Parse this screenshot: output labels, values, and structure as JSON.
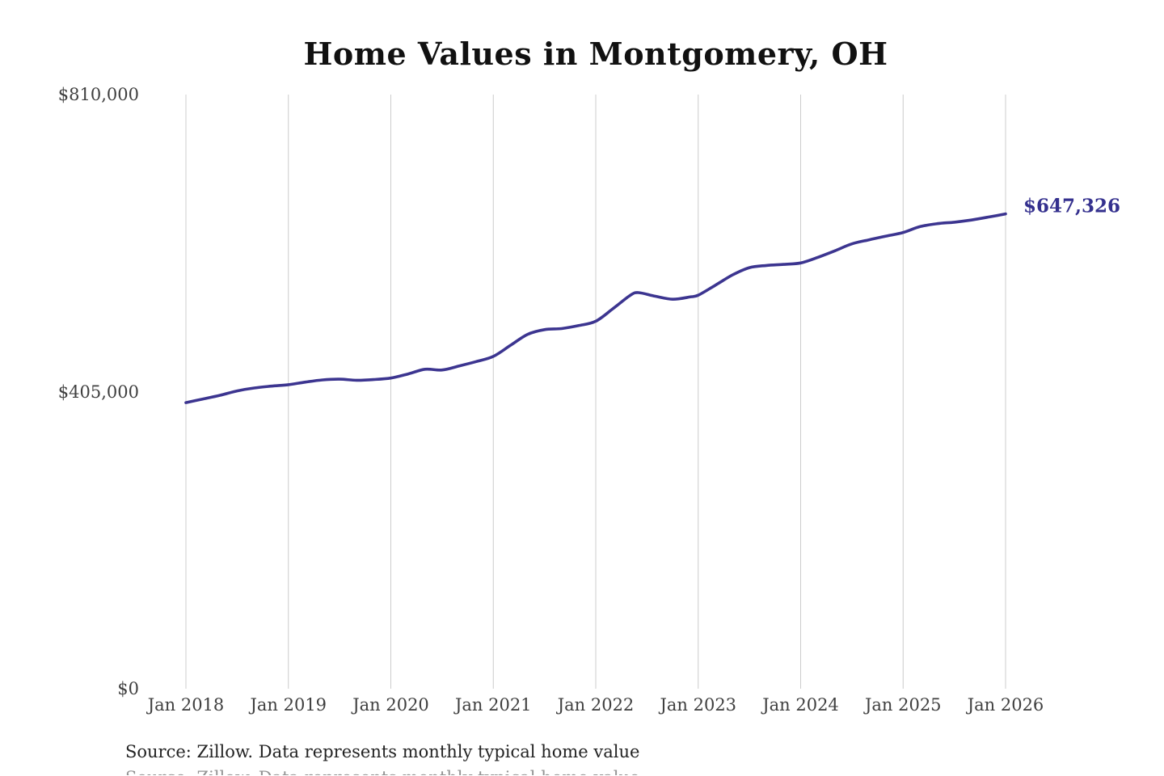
{
  "chart_data": {
    "type": "line",
    "title": "Home Values in Montgomery, OH",
    "source_note": "Source: Zillow. Data represents monthly typical home value",
    "end_label": "$647,326",
    "ylim": [
      0,
      810000
    ],
    "grid": "vertical-only",
    "legend_position": "none",
    "y_ticks": [
      {
        "label": "$810,000",
        "value": 810000
      },
      {
        "label": "$405,000",
        "value": 405000
      },
      {
        "label": "$0",
        "value": 0
      }
    ],
    "x_ticks": [
      "Jan 2018",
      "Jan 2019",
      "Jan 2020",
      "Jan 2021",
      "Jan 2022",
      "Jan 2023",
      "Jan 2024",
      "Jan 2025",
      "Jan 2026"
    ],
    "colors": {
      "line": "#3c3590",
      "end_label": "#34308e",
      "gridline": "#cccccc"
    },
    "series": [
      {
        "name": "Monthly typical home value",
        "points": [
          {
            "month": "2018-01",
            "value": 390000
          },
          {
            "month": "2018-03",
            "value": 395000
          },
          {
            "month": "2018-05",
            "value": 400000
          },
          {
            "month": "2018-07",
            "value": 406000
          },
          {
            "month": "2018-09",
            "value": 410000
          },
          {
            "month": "2018-11",
            "value": 412500
          },
          {
            "month": "2019-01",
            "value": 414500
          },
          {
            "month": "2019-03",
            "value": 418000
          },
          {
            "month": "2019-05",
            "value": 421000
          },
          {
            "month": "2019-07",
            "value": 422000
          },
          {
            "month": "2019-09",
            "value": 420500
          },
          {
            "month": "2019-11",
            "value": 421500
          },
          {
            "month": "2020-01",
            "value": 423500
          },
          {
            "month": "2020-03",
            "value": 429000
          },
          {
            "month": "2020-05",
            "value": 435500
          },
          {
            "month": "2020-07",
            "value": 434500
          },
          {
            "month": "2020-09",
            "value": 440000
          },
          {
            "month": "2020-11",
            "value": 446000
          },
          {
            "month": "2021-01",
            "value": 453000
          },
          {
            "month": "2021-03",
            "value": 468000
          },
          {
            "month": "2021-05",
            "value": 483000
          },
          {
            "month": "2021-07",
            "value": 489500
          },
          {
            "month": "2021-09",
            "value": 491000
          },
          {
            "month": "2021-11",
            "value": 495000
          },
          {
            "month": "2022-01",
            "value": 501000
          },
          {
            "month": "2022-03",
            "value": 518000
          },
          {
            "month": "2022-05",
            "value": 536000
          },
          {
            "month": "2022-06",
            "value": 540000
          },
          {
            "month": "2022-08",
            "value": 535000
          },
          {
            "month": "2022-10",
            "value": 531000
          },
          {
            "month": "2022-12",
            "value": 534000
          },
          {
            "month": "2023-01",
            "value": 536500
          },
          {
            "month": "2023-03",
            "value": 550000
          },
          {
            "month": "2023-05",
            "value": 564000
          },
          {
            "month": "2023-07",
            "value": 574000
          },
          {
            "month": "2023-09",
            "value": 577000
          },
          {
            "month": "2023-11",
            "value": 578500
          },
          {
            "month": "2024-01",
            "value": 580500
          },
          {
            "month": "2024-03",
            "value": 588000
          },
          {
            "month": "2024-05",
            "value": 597000
          },
          {
            "month": "2024-07",
            "value": 606500
          },
          {
            "month": "2024-09",
            "value": 612000
          },
          {
            "month": "2024-11",
            "value": 617000
          },
          {
            "month": "2025-01",
            "value": 622000
          },
          {
            "month": "2025-03",
            "value": 630000
          },
          {
            "month": "2025-05",
            "value": 634000
          },
          {
            "month": "2025-07",
            "value": 636000
          },
          {
            "month": "2025-09",
            "value": 639000
          },
          {
            "month": "2025-11",
            "value": 643000
          },
          {
            "month": "2026-01",
            "value": 647326
          }
        ]
      }
    ]
  }
}
